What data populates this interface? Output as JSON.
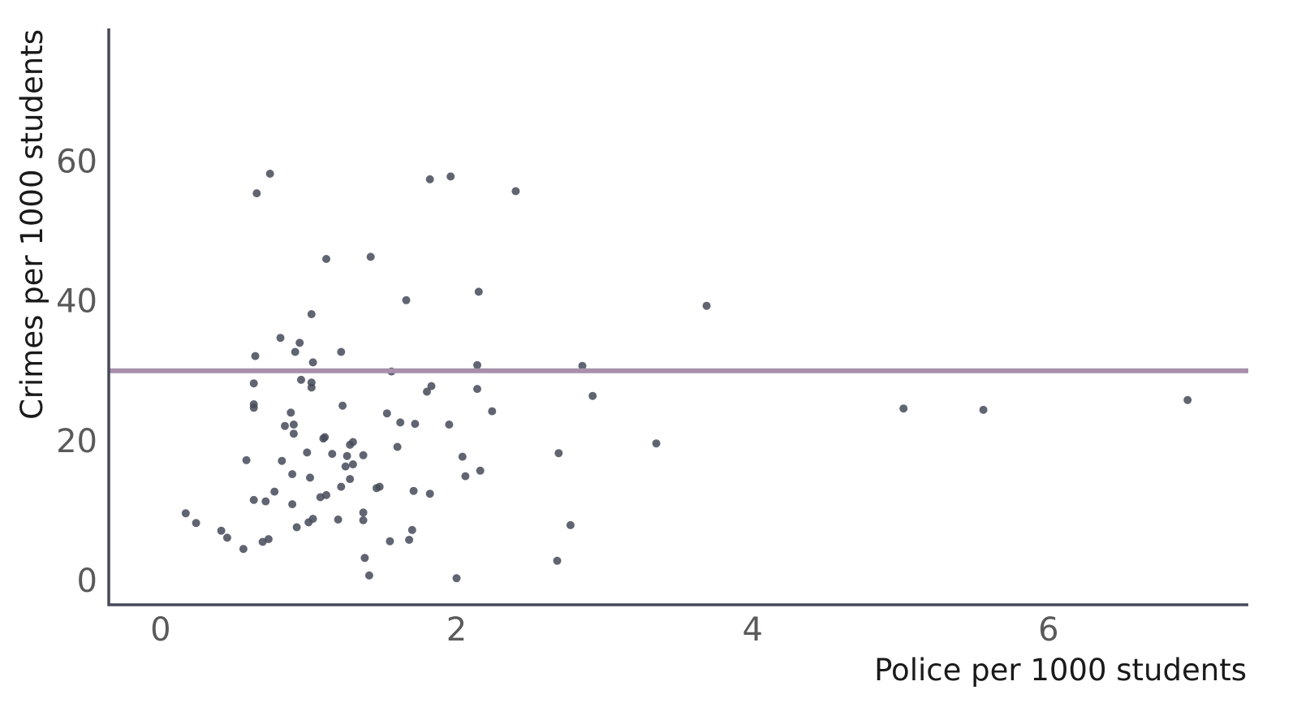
{
  "chart_data": {
    "type": "scatter",
    "title": "",
    "xlabel": "Police per 1000 students",
    "ylabel": "Crimes per 1000 students",
    "xlim": [
      -0.35,
      7.35
    ],
    "ylim": [
      -3.5,
      79
    ],
    "xticks": [
      0,
      2,
      4,
      6
    ],
    "yticks": [
      0,
      20,
      40,
      60
    ],
    "x_tick_labels": [
      "0",
      "2",
      "4",
      "6"
    ],
    "y_tick_labels": [
      "0",
      "20",
      "40",
      "60"
    ],
    "grid": false,
    "legend": "none",
    "colors": {
      "points": "#454a59",
      "reference_line": "#a98fac",
      "axis": "#454a59"
    },
    "reference_line": {
      "orientation": "horizontal",
      "y": 30
    },
    "points": [
      {
        "x": 0.17,
        "y": 9.6
      },
      {
        "x": 0.24,
        "y": 8.2
      },
      {
        "x": 0.41,
        "y": 7.1
      },
      {
        "x": 0.45,
        "y": 6.1
      },
      {
        "x": 0.56,
        "y": 4.5
      },
      {
        "x": 0.58,
        "y": 17.2
      },
      {
        "x": 0.63,
        "y": 11.5
      },
      {
        "x": 0.63,
        "y": 24.7
      },
      {
        "x": 0.63,
        "y": 25.2
      },
      {
        "x": 0.63,
        "y": 28.2
      },
      {
        "x": 0.64,
        "y": 32.1
      },
      {
        "x": 0.65,
        "y": 55.4
      },
      {
        "x": 0.69,
        "y": 5.5
      },
      {
        "x": 0.71,
        "y": 11.3
      },
      {
        "x": 0.73,
        "y": 5.9
      },
      {
        "x": 0.74,
        "y": 58.2
      },
      {
        "x": 0.77,
        "y": 12.7
      },
      {
        "x": 0.81,
        "y": 34.7
      },
      {
        "x": 0.82,
        "y": 17.1
      },
      {
        "x": 0.84,
        "y": 22.1
      },
      {
        "x": 0.88,
        "y": 24.0
      },
      {
        "x": 0.89,
        "y": 10.9
      },
      {
        "x": 0.89,
        "y": 15.2
      },
      {
        "x": 0.9,
        "y": 21.0
      },
      {
        "x": 0.9,
        "y": 22.3
      },
      {
        "x": 0.91,
        "y": 32.7
      },
      {
        "x": 0.92,
        "y": 7.6
      },
      {
        "x": 0.94,
        "y": 34.0
      },
      {
        "x": 0.95,
        "y": 28.7
      },
      {
        "x": 0.99,
        "y": 18.3
      },
      {
        "x": 1.0,
        "y": 8.3
      },
      {
        "x": 1.01,
        "y": 14.7
      },
      {
        "x": 1.02,
        "y": 27.6
      },
      {
        "x": 1.02,
        "y": 28.3
      },
      {
        "x": 1.02,
        "y": 38.1
      },
      {
        "x": 1.03,
        "y": 8.8
      },
      {
        "x": 1.03,
        "y": 31.2
      },
      {
        "x": 1.08,
        "y": 11.9
      },
      {
        "x": 1.1,
        "y": 20.3
      },
      {
        "x": 1.11,
        "y": 20.5
      },
      {
        "x": 1.12,
        "y": 12.2
      },
      {
        "x": 1.12,
        "y": 46.0
      },
      {
        "x": 1.16,
        "y": 18.1
      },
      {
        "x": 1.2,
        "y": 8.7
      },
      {
        "x": 1.22,
        "y": 13.4
      },
      {
        "x": 1.22,
        "y": 32.7
      },
      {
        "x": 1.23,
        "y": 25.0
      },
      {
        "x": 1.25,
        "y": 16.3
      },
      {
        "x": 1.26,
        "y": 17.8
      },
      {
        "x": 1.28,
        "y": 14.5
      },
      {
        "x": 1.28,
        "y": 19.4
      },
      {
        "x": 1.3,
        "y": 19.8
      },
      {
        "x": 1.3,
        "y": 16.6
      },
      {
        "x": 1.37,
        "y": 9.7
      },
      {
        "x": 1.37,
        "y": 8.6
      },
      {
        "x": 1.37,
        "y": 17.9
      },
      {
        "x": 1.38,
        "y": 3.2
      },
      {
        "x": 1.41,
        "y": 0.7
      },
      {
        "x": 1.42,
        "y": 46.3
      },
      {
        "x": 1.46,
        "y": 13.2
      },
      {
        "x": 1.48,
        "y": 13.4
      },
      {
        "x": 1.53,
        "y": 23.9
      },
      {
        "x": 1.55,
        "y": 5.6
      },
      {
        "x": 1.56,
        "y": 29.9
      },
      {
        "x": 1.6,
        "y": 19.1
      },
      {
        "x": 1.62,
        "y": 22.6
      },
      {
        "x": 1.66,
        "y": 40.1
      },
      {
        "x": 1.68,
        "y": 5.8
      },
      {
        "x": 1.7,
        "y": 7.2
      },
      {
        "x": 1.71,
        "y": 12.8
      },
      {
        "x": 1.72,
        "y": 22.4
      },
      {
        "x": 1.8,
        "y": 27.0
      },
      {
        "x": 1.82,
        "y": 12.4
      },
      {
        "x": 1.82,
        "y": 57.4
      },
      {
        "x": 1.83,
        "y": 27.8
      },
      {
        "x": 1.95,
        "y": 22.3
      },
      {
        "x": 1.96,
        "y": 57.8
      },
      {
        "x": 2.0,
        "y": 0.3
      },
      {
        "x": 2.04,
        "y": 17.7
      },
      {
        "x": 2.06,
        "y": 14.9
      },
      {
        "x": 2.14,
        "y": 27.4
      },
      {
        "x": 2.14,
        "y": 30.8
      },
      {
        "x": 2.15,
        "y": 41.3
      },
      {
        "x": 2.16,
        "y": 15.7
      },
      {
        "x": 2.24,
        "y": 24.2
      },
      {
        "x": 2.4,
        "y": 55.7
      },
      {
        "x": 2.68,
        "y": 2.8
      },
      {
        "x": 2.69,
        "y": 18.2
      },
      {
        "x": 2.77,
        "y": 7.9
      },
      {
        "x": 2.85,
        "y": 30.7
      },
      {
        "x": 2.92,
        "y": 26.4
      },
      {
        "x": 3.35,
        "y": 19.6
      },
      {
        "x": 3.69,
        "y": 39.3
      },
      {
        "x": 5.02,
        "y": 24.6
      },
      {
        "x": 5.56,
        "y": 24.4
      },
      {
        "x": 6.94,
        "y": 25.8
      }
    ]
  }
}
